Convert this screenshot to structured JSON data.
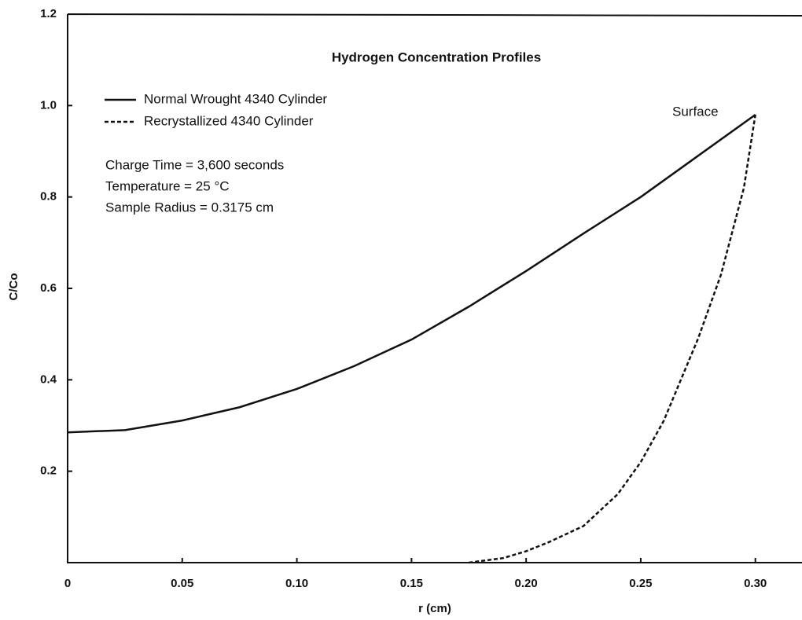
{
  "chart_data": {
    "type": "line",
    "title": "Hydrogen Concentration Profiles",
    "xlabel": "r (cm)",
    "ylabel": "C/Co",
    "annotations": [
      "Charge Time = 3,600 seconds",
      "Temperature = 25 °C",
      "Sample Radius = 0.3175 cm",
      "Surface"
    ],
    "xlim": [
      0,
      0.32
    ],
    "ylim": [
      0,
      1.2
    ],
    "xticks": [
      0,
      0.05,
      {
        "value": 0.1,
        "label": "0.10"
      },
      0.15,
      {
        "value": 0.2,
        "label": "0.20"
      },
      0.25,
      {
        "value": 0.3,
        "label": "0.30"
      }
    ],
    "yticks": [
      0.2,
      0.4,
      0.6,
      0.8,
      {
        "value": 1.0,
        "label": "1.0"
      },
      {
        "value": 1.2,
        "label": "1.2"
      }
    ],
    "grid": false,
    "series": [
      {
        "name": "Normal Wrought 4340 Cylinder",
        "color": "#111111",
        "dash": "solid",
        "x": [
          0,
          0.025,
          0.05,
          0.075,
          0.1,
          0.125,
          0.15,
          0.175,
          0.2,
          0.225,
          0.25,
          0.275,
          0.3
        ],
        "values": [
          0.285,
          0.29,
          0.311,
          0.34,
          0.38,
          0.43,
          0.488,
          0.56,
          0.638,
          0.72,
          0.8,
          0.89,
          0.98
        ]
      },
      {
        "name": "Recrystallized 4340 Cylinder",
        "color": "#111111",
        "dash": "dashed",
        "x": [
          0.175,
          0.19,
          0.2,
          0.21,
          0.225,
          0.24,
          0.25,
          0.26,
          0.275,
          0.285,
          0.295,
          0.3
        ],
        "values": [
          0,
          0.01,
          0.025,
          0.045,
          0.08,
          0.15,
          0.22,
          0.31,
          0.49,
          0.63,
          0.82,
          0.98
        ]
      }
    ]
  }
}
